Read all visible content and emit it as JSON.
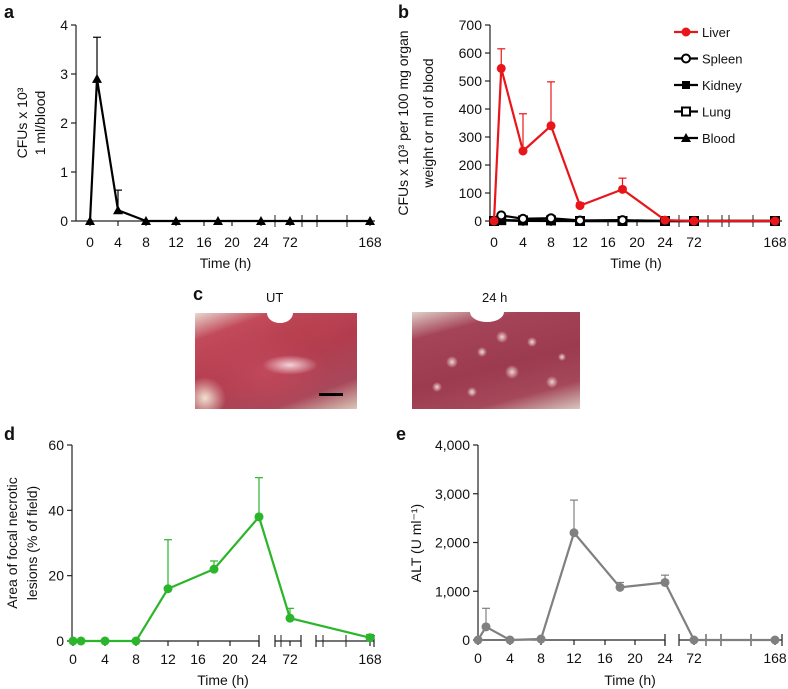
{
  "panels": {
    "a": "a",
    "b": "b",
    "c": "c",
    "d": "d",
    "e": "e"
  },
  "photos": {
    "left_label": "UT",
    "right_label": "24 h"
  },
  "chart_data": [
    {
      "panel": "a",
      "type": "line",
      "xlabel": "Time (h)",
      "ylabel_lines": [
        "CFUs x 10³",
        "1 ml/blood"
      ],
      "ylim": [
        0,
        4
      ],
      "yticks": [
        0,
        1,
        2,
        3,
        4
      ],
      "ytick_labels": [
        "0",
        "1",
        "2",
        "3",
        "4"
      ],
      "xtick_values": [
        0,
        4,
        8,
        12,
        16,
        20,
        24,
        72,
        168
      ],
      "xtick_labels": [
        "0",
        "4",
        "8",
        "12",
        "16",
        "20",
        "24",
        "72",
        "168"
      ],
      "series": [
        {
          "name": "Blood",
          "marker": "triangle",
          "color": "#000000",
          "x": [
            0,
            1,
            4,
            8,
            12,
            18,
            24,
            72,
            168
          ],
          "y": [
            0,
            2.9,
            0.22,
            0,
            0,
            0,
            0,
            0,
            0
          ],
          "err_upper": [
            null,
            3.75,
            0.63,
            null,
            null,
            null,
            null,
            null,
            null
          ]
        }
      ]
    },
    {
      "panel": "b",
      "type": "line",
      "xlabel": "Time (h)",
      "ylabel_lines": [
        "CFUs x 10³ per 100 mg organ",
        "weight or ml of blood"
      ],
      "ylim": [
        0,
        700
      ],
      "yticks": [
        0,
        100,
        200,
        300,
        400,
        500,
        600,
        700
      ],
      "ytick_labels": [
        "0",
        "100",
        "200",
        "300",
        "400",
        "500",
        "600",
        "700"
      ],
      "xtick_values": [
        0,
        4,
        8,
        12,
        16,
        20,
        24,
        72,
        168
      ],
      "xtick_labels": [
        "0",
        "4",
        "8",
        "12",
        "16",
        "20",
        "24",
        "72",
        "168"
      ],
      "legend": "top-right",
      "series": [
        {
          "name": "Liver",
          "marker": "circle",
          "color": "#e8161b",
          "x": [
            0,
            1,
            4,
            8,
            12,
            18,
            24,
            72,
            168
          ],
          "y": [
            0,
            545,
            250,
            340,
            55,
            113,
            3,
            0,
            0
          ],
          "err_upper": [
            null,
            615,
            383,
            497,
            65,
            153,
            null,
            null,
            null
          ]
        },
        {
          "name": "Spleen",
          "marker": "open-circle",
          "color": "#000000",
          "x": [
            0,
            1,
            4,
            8,
            12,
            18,
            24,
            72,
            168
          ],
          "y": [
            0,
            20,
            8,
            10,
            2,
            3,
            0,
            0,
            0
          ]
        },
        {
          "name": "Kidney",
          "marker": "square",
          "color": "#000000",
          "x": [
            0,
            1,
            4,
            8,
            12,
            18,
            24,
            72,
            168
          ],
          "y": [
            0,
            2,
            1,
            1,
            0,
            0,
            0,
            0,
            0
          ]
        },
        {
          "name": "Lung",
          "marker": "open-square",
          "color": "#000000",
          "x": [
            0,
            1,
            4,
            8,
            12,
            18,
            24,
            72,
            168
          ],
          "y": [
            0,
            3,
            2,
            2,
            0,
            0,
            0,
            0,
            0
          ]
        },
        {
          "name": "Blood",
          "marker": "triangle",
          "color": "#000000",
          "x": [
            0,
            1,
            4,
            8,
            12,
            18,
            24,
            72,
            168
          ],
          "y": [
            0,
            2.9,
            0.2,
            0,
            0,
            0,
            0,
            0,
            0
          ]
        }
      ]
    },
    {
      "panel": "d",
      "type": "line",
      "xlabel": "Time (h)",
      "ylabel_lines": [
        "Area of focal necrotic",
        "lesions (% of field)"
      ],
      "ylim": [
        0,
        60
      ],
      "yticks": [
        0,
        20,
        40,
        60
      ],
      "ytick_labels": [
        "0",
        "20",
        "40",
        "60"
      ],
      "xtick_values": [
        0,
        4,
        8,
        12,
        16,
        20,
        24,
        72,
        168
      ],
      "xtick_labels": [
        "0",
        "4",
        "8",
        "12",
        "16",
        "20",
        "24",
        "72",
        "168"
      ],
      "series": [
        {
          "name": "Necrotic lesions",
          "marker": "circle",
          "color": "#2bb52b",
          "x": [
            0,
            1,
            4,
            8,
            12,
            18,
            24,
            72,
            168
          ],
          "y": [
            0,
            0,
            0,
            0,
            16,
            22,
            38,
            7,
            1
          ],
          "err_upper": [
            null,
            null,
            null,
            null,
            31,
            24.5,
            50,
            10,
            2
          ]
        }
      ]
    },
    {
      "panel": "e",
      "type": "line",
      "xlabel": "Time (h)",
      "ylabel_lines": [
        "ALT (U ml⁻¹)"
      ],
      "ylim": [
        0,
        4000
      ],
      "yticks": [
        0,
        1000,
        2000,
        3000,
        4000
      ],
      "ytick_labels": [
        "0",
        "1,000",
        "2,000",
        "3,000",
        "4,000"
      ],
      "xtick_values": [
        0,
        4,
        8,
        12,
        16,
        20,
        24,
        72,
        168
      ],
      "xtick_labels": [
        "0",
        "4",
        "8",
        "12",
        "16",
        "20",
        "24",
        "72",
        "168"
      ],
      "series": [
        {
          "name": "ALT",
          "marker": "circle",
          "color": "#808080",
          "x": [
            0,
            1,
            4,
            8,
            12,
            18,
            24,
            72,
            168
          ],
          "y": [
            0,
            270,
            0,
            20,
            2200,
            1080,
            1180,
            0,
            0
          ],
          "err_upper": [
            null,
            650,
            null,
            null,
            2870,
            1180,
            1330,
            null,
            null
          ]
        }
      ]
    }
  ]
}
